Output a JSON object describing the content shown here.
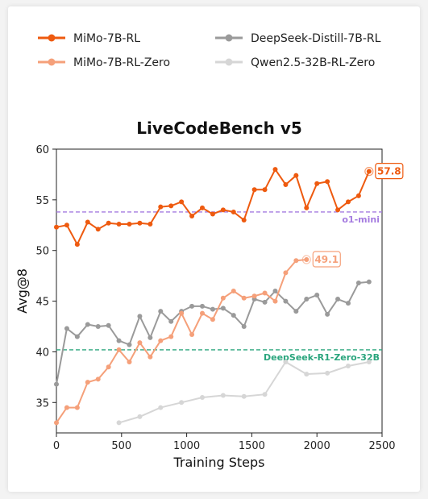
{
  "chart_data": {
    "type": "line",
    "title": "LiveCodeBench v5",
    "xlabel": "Training Steps",
    "ylabel": "Avg@8",
    "xlim": [
      0,
      2500
    ],
    "ylim": [
      32,
      60
    ],
    "xticks": [
      0,
      500,
      1000,
      1500,
      2000,
      2500
    ],
    "yticks": [
      35,
      40,
      45,
      50,
      55,
      60
    ],
    "grid": false,
    "legend_position": "top",
    "series": [
      {
        "name": "MiMo-7B-RL",
        "color": "#ee5a0f",
        "x": [
          0,
          80,
          160,
          240,
          320,
          400,
          480,
          560,
          640,
          720,
          800,
          880,
          960,
          1040,
          1120,
          1200,
          1280,
          1360,
          1440,
          1520,
          1600,
          1680,
          1760,
          1840,
          1920,
          2000,
          2080,
          2160,
          2240,
          2320,
          2400
        ],
        "values": [
          52.3,
          52.5,
          50.6,
          52.8,
          52.1,
          52.7,
          52.6,
          52.6,
          52.7,
          52.6,
          54.3,
          54.4,
          54.8,
          53.4,
          54.2,
          53.6,
          54.0,
          53.8,
          53.0,
          56.0,
          56.0,
          58.0,
          56.5,
          57.4,
          54.2,
          56.6,
          56.8,
          54.0,
          54.8,
          55.4,
          57.8
        ],
        "end_label": "57.8"
      },
      {
        "name": "MiMo-7B-RL-Zero",
        "color": "#f5a07a",
        "x": [
          0,
          80,
          160,
          240,
          320,
          400,
          480,
          560,
          640,
          720,
          800,
          880,
          960,
          1040,
          1120,
          1200,
          1280,
          1360,
          1440,
          1520,
          1600,
          1680,
          1760,
          1840,
          1920
        ],
        "values": [
          33.0,
          34.5,
          34.5,
          37.0,
          37.3,
          38.5,
          40.2,
          39.0,
          40.9,
          39.5,
          41.1,
          41.5,
          43.8,
          41.7,
          43.8,
          43.2,
          45.3,
          46.0,
          45.3,
          45.5,
          45.8,
          45.0,
          47.8,
          49.0,
          49.1
        ],
        "end_label": "49.1"
      },
      {
        "name": "DeepSeek-Distill-7B-RL",
        "color": "#9a9a9a",
        "x": [
          0,
          80,
          160,
          240,
          320,
          400,
          480,
          560,
          640,
          720,
          800,
          880,
          960,
          1040,
          1120,
          1200,
          1280,
          1360,
          1440,
          1520,
          1600,
          1680,
          1760,
          1840,
          1920,
          2000,
          2080,
          2160,
          2240,
          2320,
          2400
        ],
        "values": [
          36.8,
          42.3,
          41.5,
          42.7,
          42.5,
          42.6,
          41.1,
          40.7,
          43.5,
          41.4,
          44.0,
          43.0,
          44.0,
          44.5,
          44.5,
          44.2,
          44.3,
          43.6,
          42.5,
          45.2,
          44.9,
          46.0,
          45.0,
          44.0,
          45.2,
          45.6,
          43.7,
          45.2,
          44.8,
          46.8,
          46.9
        ]
      },
      {
        "name": "Qwen2.5-32B-RL-Zero",
        "color": "#d6d6d6",
        "x": [
          480,
          640,
          800,
          960,
          1120,
          1280,
          1440,
          1600,
          1760,
          1920,
          2080,
          2240,
          2400
        ],
        "values": [
          33.0,
          33.6,
          34.5,
          35.0,
          35.5,
          35.7,
          35.6,
          35.8,
          39.0,
          37.8,
          37.9,
          38.6,
          39.0
        ]
      }
    ],
    "reference_lines": [
      {
        "label": "o1-mini",
        "value": 53.8,
        "color": "#a57ce0"
      },
      {
        "label": "DeepSeek-R1-Zero-32B",
        "value": 40.2,
        "color": "#2aa57d"
      }
    ]
  }
}
